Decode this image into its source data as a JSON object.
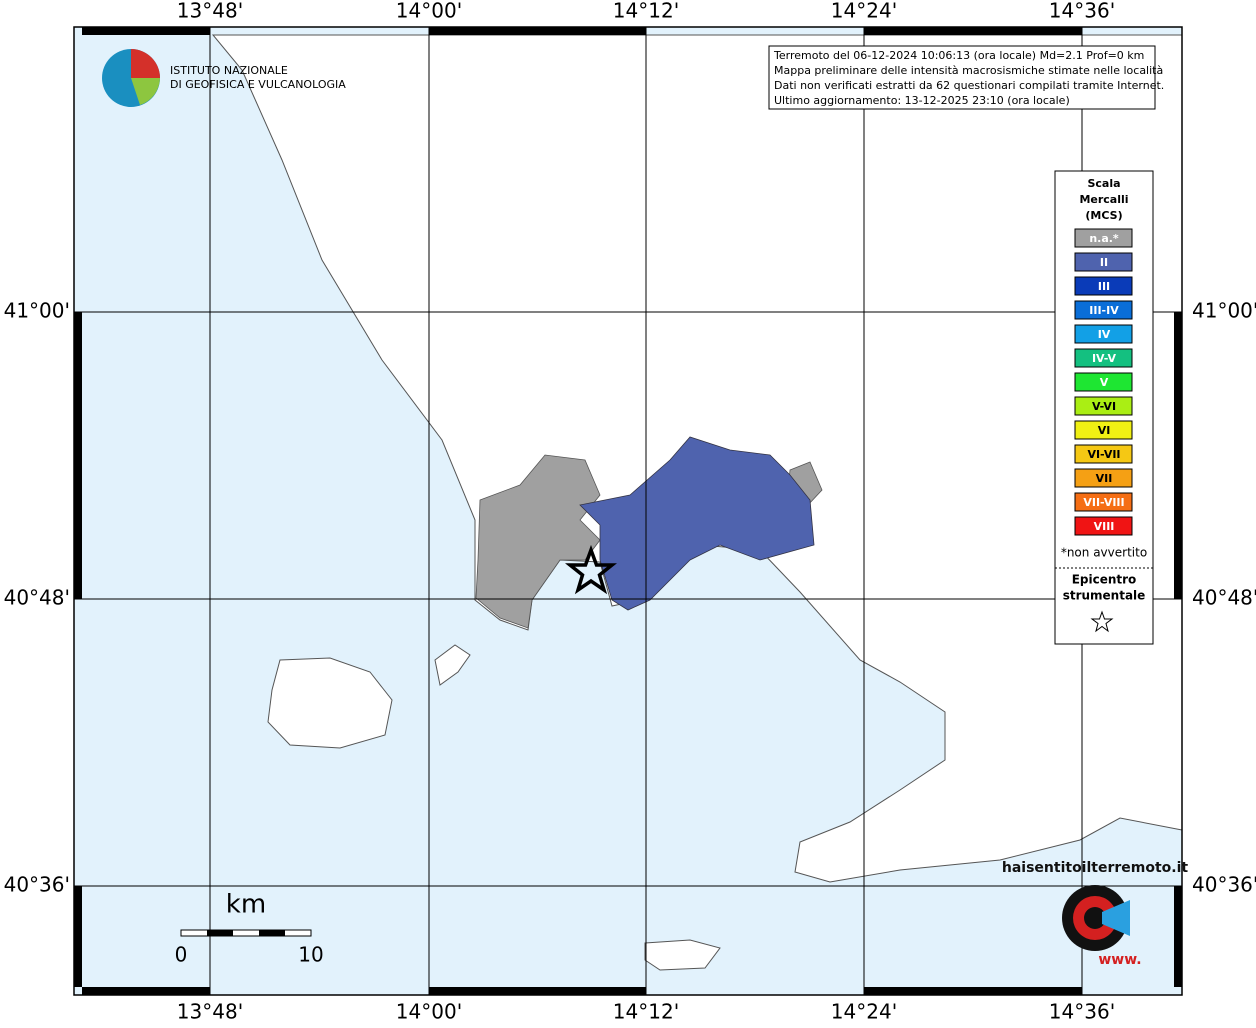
{
  "map": {
    "top_labels": [
      "13°48'",
      "14°00'",
      "14°12'",
      "14°24'",
      "14°36'"
    ],
    "bottom_labels": [
      "13°48'",
      "14°00'",
      "14°12'",
      "14°24'",
      "14°36'"
    ],
    "left_labels": [
      "41°00'",
      "40°48'",
      "40°36'"
    ],
    "right_labels": [
      "41°00'",
      "40°48'",
      "40°36'"
    ],
    "logo": [
      "ISTITUTO NAZIONALE",
      "DI GEOFISICA E VULCANOLOGIA"
    ],
    "info": [
      "Terremoto del 06-12-2024 10:06:13 (ora locale) Md=2.1 Prof=0 km",
      "Mappa preliminare delle intensità macrosismiche stimate nelle località",
      "Dati non verificati estratti da 62 questionari compilati tramite Internet.",
      "Ultimo aggiornamento: 13-12-2025 23:10 (ora locale)"
    ],
    "legend": {
      "title": [
        "Scala",
        "Mercalli",
        "(MCS)"
      ],
      "items": [
        {
          "label": "n.a.*",
          "color": "#a0a0a0"
        },
        {
          "label": "II",
          "color": "#4f63ae"
        },
        {
          "label": "III",
          "color": "#0a3bb8"
        },
        {
          "label": "III-IV",
          "color": "#0a6ed8"
        },
        {
          "label": "IV",
          "color": "#12a0e6"
        },
        {
          "label": "IV-V",
          "color": "#14c080"
        },
        {
          "label": "V",
          "color": "#1ee632"
        },
        {
          "label": "V-VI",
          "color": "#aaee14"
        },
        {
          "label": "VI",
          "color": "#f0f014"
        },
        {
          "label": "VI-VII",
          "color": "#f5c814"
        },
        {
          "label": "VII",
          "color": "#f5a014"
        },
        {
          "label": "VII-VIII",
          "color": "#f56e14"
        },
        {
          "label": "VIII",
          "color": "#f01414"
        }
      ],
      "footnote": "*non avvertito",
      "epicentre": [
        "Epicentro",
        "strumentale"
      ]
    },
    "scale": {
      "unit": "km",
      "start": "0",
      "end": "10"
    },
    "badge": {
      "site": "haisentitoilterremoto.it",
      "www": "www."
    }
  }
}
